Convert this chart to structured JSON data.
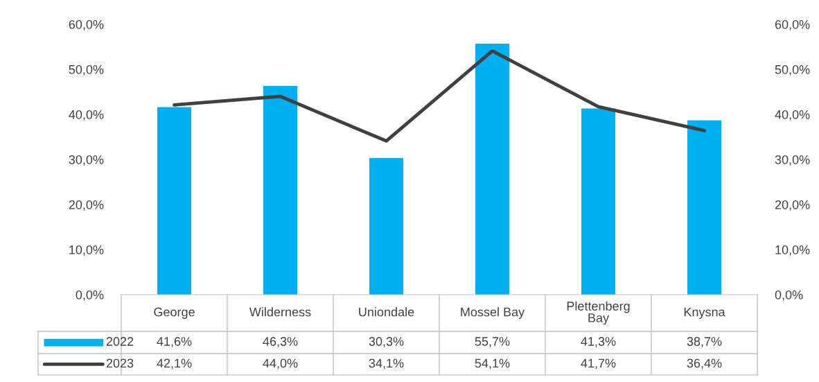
{
  "chart_data": {
    "type": "bar",
    "categories": [
      "George",
      "Wilderness",
      "Uniondale",
      "Mossel Bay",
      "Plettenberg Bay",
      "Knysna"
    ],
    "series": [
      {
        "name": "2022",
        "color": "#00b0f0",
        "values": [
          41.6,
          46.3,
          30.3,
          55.7,
          41.3,
          38.7
        ],
        "value_labels": [
          "41,6%",
          "46,3%",
          "30,3%",
          "55,7%",
          "41,3%",
          "38,7%"
        ]
      },
      {
        "name": "2023",
        "type": "line",
        "color": "#404040",
        "values": [
          42.1,
          44.0,
          34.1,
          54.1,
          41.7,
          36.4
        ],
        "value_labels": [
          "42,1%",
          "44,0%",
          "34,1%",
          "54,1%",
          "41,7%",
          "36,4%"
        ]
      }
    ],
    "ylim": [
      0,
      60
    ],
    "yticks": [
      {
        "value": 0,
        "label": "0,0%"
      },
      {
        "value": 10,
        "label": "10,0%"
      },
      {
        "value": 20,
        "label": "20,0%"
      },
      {
        "value": 30,
        "label": "30,0%"
      },
      {
        "value": 40,
        "label": "40,0%"
      },
      {
        "value": 50,
        "label": "50,0%"
      },
      {
        "value": 60,
        "label": "60,0%"
      }
    ],
    "y2lim": [
      0,
      60
    ],
    "y2ticks": [
      {
        "value": 0,
        "label": "0,0%"
      },
      {
        "value": 10,
        "label": "10,0%"
      },
      {
        "value": 20,
        "label": "20,0%"
      },
      {
        "value": 30,
        "label": "30,0%"
      },
      {
        "value": 40,
        "label": "40,0%"
      },
      {
        "value": 50,
        "label": "50,0%"
      },
      {
        "value": 60,
        "label": "60,0%"
      }
    ],
    "legend": "bottom",
    "grid": false,
    "marker": "none",
    "line_style": "solid"
  }
}
